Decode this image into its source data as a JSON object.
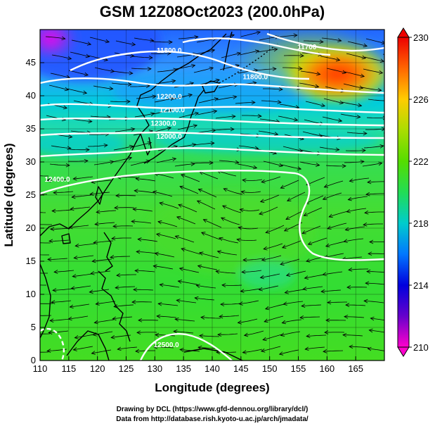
{
  "title": "GSM 12Z08Oct2023 (200.0hPa)",
  "credits": {
    "line1": "Drawing by DCL (https://www.gfd-dennou.org/library/dcl/)",
    "line2": "Data from http://database.rish.kyoto-u.ac.jp/arch/jmadata/"
  },
  "chart_data": {
    "type": "heatmap",
    "title": "GSM 12Z08Oct2023 (200.0hPa)",
    "xlabel": "Longitude (degrees)",
    "ylabel": "Latitude  (degrees)",
    "xlim": [
      110,
      170
    ],
    "ylim": [
      0,
      50
    ],
    "x_ticks": [
      "110",
      "115",
      "120",
      "125",
      "130",
      "135",
      "140",
      "145",
      "150",
      "155",
      "160",
      "165"
    ],
    "y_ticks": [
      "0",
      "5",
      "10",
      "15",
      "20",
      "25",
      "30",
      "35",
      "40",
      "45"
    ],
    "colorbar": {
      "min": 210,
      "max": 230,
      "ticks": [
        "210",
        "214",
        "218",
        "222",
        "226",
        "230"
      ],
      "colors": [
        "#ff00cc",
        "#6600cc",
        "#0000dd",
        "#0077ff",
        "#00cccc",
        "#22dd55",
        "#55dd00",
        "#aadd00",
        "#ffcc00",
        "#ff6600",
        "#ee0000"
      ]
    },
    "field_palette": {
      "magenta": "#ee00ee",
      "blue": "#0044ff",
      "cyan": "#00ccdd",
      "green": "#33dd33",
      "yellow": "#dddd00",
      "orange": "#ff7700",
      "red": "#ff3300",
      "land_green": "#22cc22"
    },
    "contours": [
      {
        "label": "11800.0",
        "lon": 132.5,
        "lat": 46.5
      },
      {
        "label": "11700",
        "lon": 156.5,
        "lat": 47.0
      },
      {
        "label": "11800.0",
        "lon": 147.5,
        "lat": 42.5
      },
      {
        "label": "12200.0",
        "lon": 132.5,
        "lat": 39.5
      },
      {
        "label": "12100.0",
        "lon": 133.0,
        "lat": 37.5
      },
      {
        "label": "12300.0",
        "lon": 131.5,
        "lat": 35.5
      },
      {
        "label": "12000.0",
        "lon": 132.5,
        "lat": 33.5
      },
      {
        "label": "12400.0",
        "lon": 113.0,
        "lat": 27.0
      },
      {
        "label": "12500.0",
        "lon": 132.0,
        "lat": 2.0
      }
    ]
  }
}
